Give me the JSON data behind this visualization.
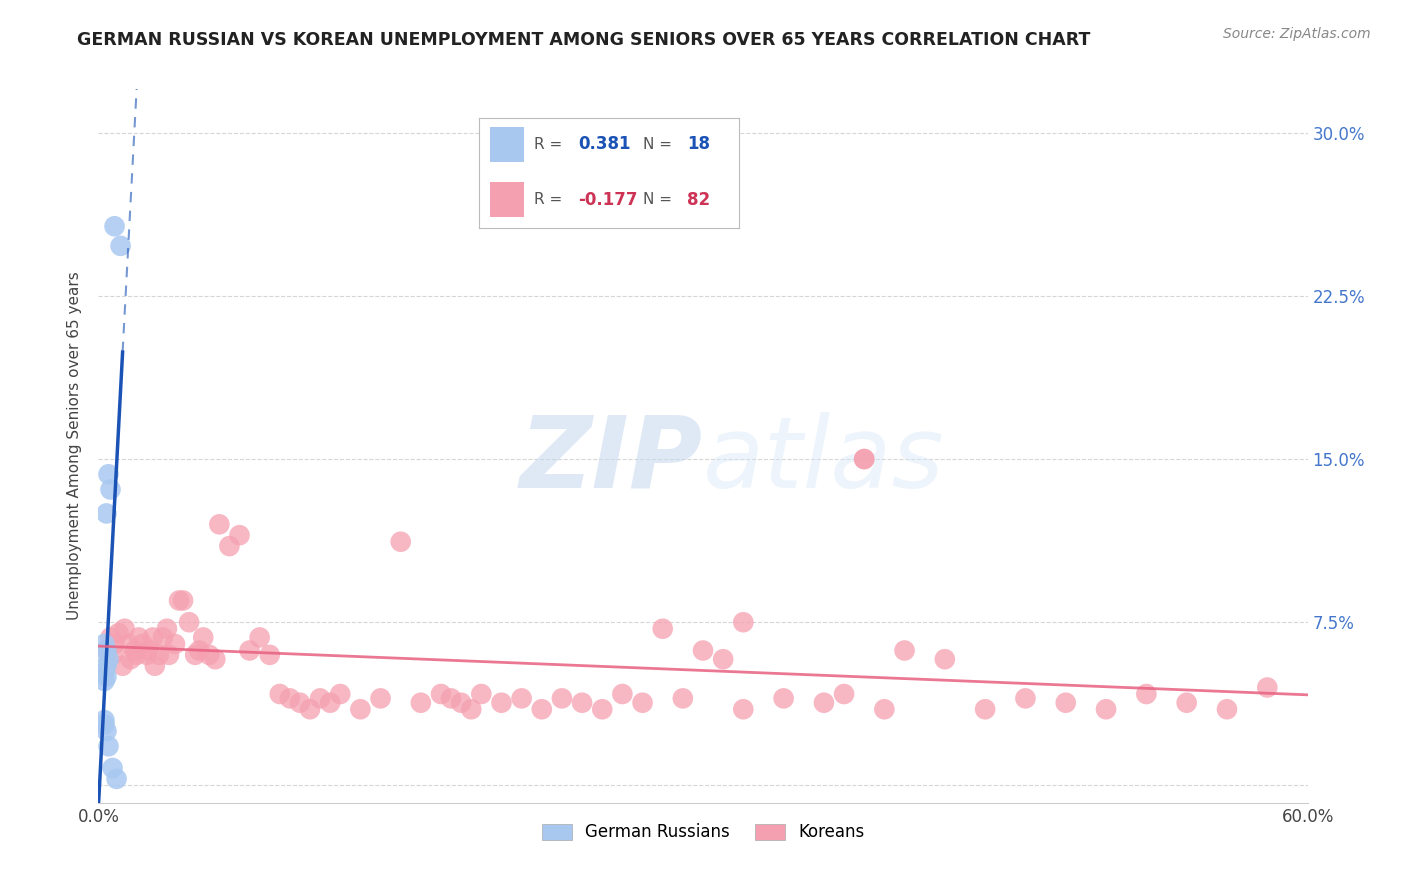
{
  "title": "GERMAN RUSSIAN VS KOREAN UNEMPLOYMENT AMONG SENIORS OVER 65 YEARS CORRELATION CHART",
  "source": "Source: ZipAtlas.com",
  "ylabel": "Unemployment Among Seniors over 65 years",
  "xmin": 0.0,
  "xmax": 0.6,
  "ymin": -0.008,
  "ymax": 0.32,
  "yticks": [
    0.0,
    0.075,
    0.15,
    0.225,
    0.3
  ],
  "ytick_labels_right": [
    "",
    "7.5%",
    "15.0%",
    "22.5%",
    "30.0%"
  ],
  "xtick_left_label": "0.0%",
  "xtick_right_label": "60.0%",
  "blue_color": "#a8c8f0",
  "blue_line_color": "#1a52b5",
  "pink_color": "#f5a0b0",
  "pink_line_color": "#e86080",
  "legend_R1": "0.381",
  "legend_N1": "18",
  "legend_R2": "-0.177",
  "legend_N2": "82",
  "watermark_zip": "ZIP",
  "watermark_atlas": "atlas",
  "blue_scatter_x": [
    0.008,
    0.011,
    0.005,
    0.006,
    0.004,
    0.003,
    0.004,
    0.005,
    0.004,
    0.003,
    0.004,
    0.003,
    0.003,
    0.003,
    0.004,
    0.005,
    0.007,
    0.009
  ],
  "blue_scatter_y": [
    0.257,
    0.248,
    0.143,
    0.136,
    0.125,
    0.065,
    0.062,
    0.058,
    0.055,
    0.052,
    0.05,
    0.048,
    0.03,
    0.028,
    0.025,
    0.018,
    0.008,
    0.003
  ],
  "pink_scatter_x": [
    0.004,
    0.006,
    0.007,
    0.008,
    0.01,
    0.012,
    0.013,
    0.015,
    0.016,
    0.018,
    0.019,
    0.02,
    0.022,
    0.024,
    0.025,
    0.027,
    0.028,
    0.03,
    0.032,
    0.034,
    0.035,
    0.038,
    0.04,
    0.042,
    0.045,
    0.048,
    0.05,
    0.052,
    0.055,
    0.058,
    0.06,
    0.065,
    0.07,
    0.075,
    0.08,
    0.085,
    0.09,
    0.095,
    0.1,
    0.105,
    0.11,
    0.115,
    0.12,
    0.13,
    0.14,
    0.15,
    0.16,
    0.17,
    0.175,
    0.18,
    0.185,
    0.19,
    0.2,
    0.21,
    0.22,
    0.23,
    0.24,
    0.25,
    0.26,
    0.27,
    0.28,
    0.29,
    0.3,
    0.31,
    0.32,
    0.34,
    0.36,
    0.37,
    0.38,
    0.39,
    0.4,
    0.42,
    0.44,
    0.46,
    0.48,
    0.5,
    0.52,
    0.54,
    0.56,
    0.58,
    0.32,
    0.38
  ],
  "pink_scatter_y": [
    0.062,
    0.068,
    0.06,
    0.065,
    0.07,
    0.055,
    0.072,
    0.065,
    0.058,
    0.062,
    0.06,
    0.068,
    0.065,
    0.06,
    0.062,
    0.068,
    0.055,
    0.06,
    0.068,
    0.072,
    0.06,
    0.065,
    0.085,
    0.085,
    0.075,
    0.06,
    0.062,
    0.068,
    0.06,
    0.058,
    0.12,
    0.11,
    0.115,
    0.062,
    0.068,
    0.06,
    0.042,
    0.04,
    0.038,
    0.035,
    0.04,
    0.038,
    0.042,
    0.035,
    0.04,
    0.112,
    0.038,
    0.042,
    0.04,
    0.038,
    0.035,
    0.042,
    0.038,
    0.04,
    0.035,
    0.04,
    0.038,
    0.035,
    0.042,
    0.038,
    0.072,
    0.04,
    0.062,
    0.058,
    0.035,
    0.04,
    0.038,
    0.042,
    0.15,
    0.035,
    0.062,
    0.058,
    0.035,
    0.04,
    0.038,
    0.035,
    0.042,
    0.038,
    0.035,
    0.045,
    0.075,
    0.15
  ]
}
